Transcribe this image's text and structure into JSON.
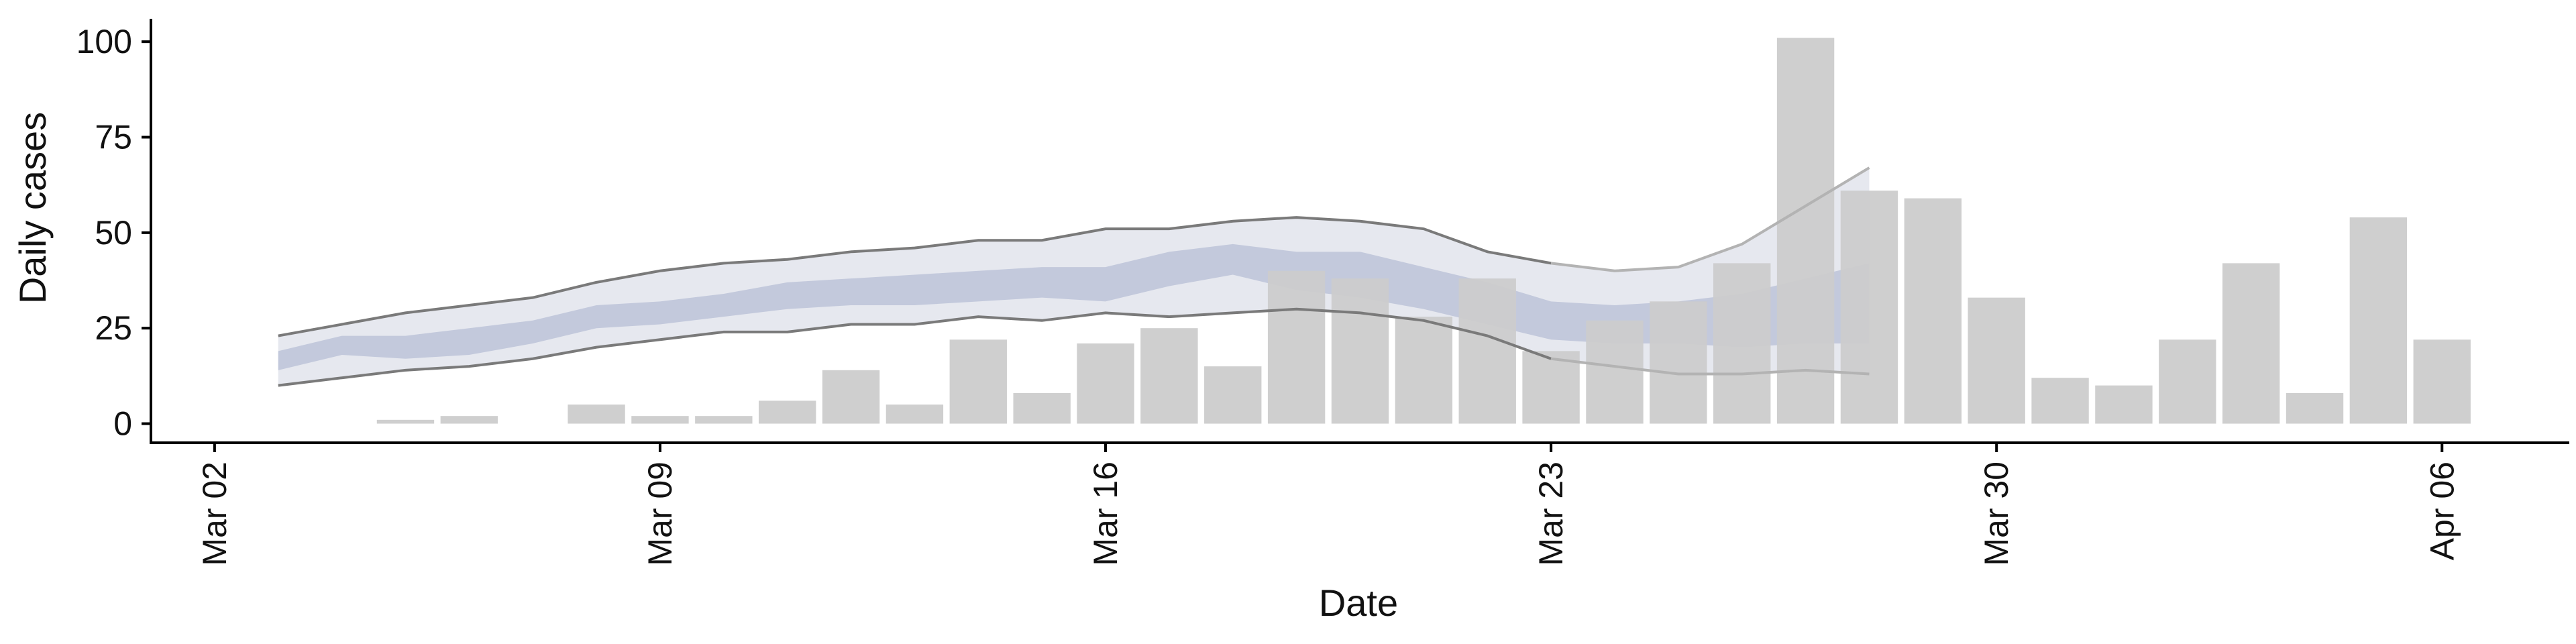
{
  "chart_data": {
    "type": "bar",
    "xlabel": "Date",
    "ylabel": "Daily cases",
    "x_start": "2020-03-02",
    "xlim": [
      "2020-03-01",
      "2020-04-08"
    ],
    "ylim": [
      -5,
      106
    ],
    "y_ticks": [
      0,
      25,
      50,
      75,
      100
    ],
    "x_ticks": [
      {
        "date": "2020-03-02",
        "label": "Mar 02"
      },
      {
        "date": "2020-03-09",
        "label": "Mar 09"
      },
      {
        "date": "2020-03-16",
        "label": "Mar 16"
      },
      {
        "date": "2020-03-23",
        "label": "Mar 23"
      },
      {
        "date": "2020-03-30",
        "label": "Mar 30"
      },
      {
        "date": "2020-04-06",
        "label": "Apr 06"
      }
    ],
    "grid": false,
    "legend": "none",
    "bars": {
      "name": "Reported cases",
      "color": "#cccccc",
      "data": [
        {
          "date": "2020-03-05",
          "value": 1
        },
        {
          "date": "2020-03-06",
          "value": 2
        },
        {
          "date": "2020-03-08",
          "value": 5
        },
        {
          "date": "2020-03-09",
          "value": 2
        },
        {
          "date": "2020-03-10",
          "value": 2
        },
        {
          "date": "2020-03-11",
          "value": 6
        },
        {
          "date": "2020-03-12",
          "value": 14
        },
        {
          "date": "2020-03-13",
          "value": 5
        },
        {
          "date": "2020-03-14",
          "value": 22
        },
        {
          "date": "2020-03-15",
          "value": 8
        },
        {
          "date": "2020-03-16",
          "value": 21
        },
        {
          "date": "2020-03-17",
          "value": 25
        },
        {
          "date": "2020-03-18",
          "value": 15
        },
        {
          "date": "2020-03-19",
          "value": 40
        },
        {
          "date": "2020-03-20",
          "value": 38
        },
        {
          "date": "2020-03-21",
          "value": 28
        },
        {
          "date": "2020-03-22",
          "value": 38
        },
        {
          "date": "2020-03-23",
          "value": 19
        },
        {
          "date": "2020-03-24",
          "value": 27
        },
        {
          "date": "2020-03-25",
          "value": 32
        },
        {
          "date": "2020-03-26",
          "value": 42
        },
        {
          "date": "2020-03-27",
          "value": 101
        },
        {
          "date": "2020-03-28",
          "value": 61
        },
        {
          "date": "2020-03-29",
          "value": 59
        },
        {
          "date": "2020-03-30",
          "value": 33
        },
        {
          "date": "2020-03-31",
          "value": 12
        },
        {
          "date": "2020-04-01",
          "value": 10
        },
        {
          "date": "2020-04-02",
          "value": 22
        },
        {
          "date": "2020-04-03",
          "value": 42
        },
        {
          "date": "2020-04-04",
          "value": 8
        },
        {
          "date": "2020-04-05",
          "value": 54
        },
        {
          "date": "2020-04-06",
          "value": 22
        }
      ]
    },
    "estimate": {
      "dates": [
        "2020-03-03",
        "2020-03-04",
        "2020-03-05",
        "2020-03-06",
        "2020-03-07",
        "2020-03-08",
        "2020-03-09",
        "2020-03-10",
        "2020-03-11",
        "2020-03-12",
        "2020-03-13",
        "2020-03-14",
        "2020-03-15",
        "2020-03-16",
        "2020-03-17",
        "2020-03-18",
        "2020-03-19",
        "2020-03-20",
        "2020-03-21",
        "2020-03-22",
        "2020-03-23",
        "2020-03-24",
        "2020-03-25",
        "2020-03-26",
        "2020-03-27",
        "2020-03-28"
      ],
      "upper90": [
        23,
        26,
        29,
        31,
        33,
        37,
        40,
        42,
        43,
        45,
        46,
        48,
        48,
        51,
        51,
        53,
        54,
        53,
        51,
        45,
        42,
        40,
        41,
        47,
        57,
        67
      ],
      "upper50": [
        19,
        23,
        23,
        25,
        27,
        31,
        32,
        34,
        37,
        38,
        39,
        40,
        41,
        41,
        45,
        47,
        45,
        45,
        41,
        37,
        32,
        31,
        32,
        34,
        38,
        42
      ],
      "lower50": [
        14,
        18,
        17,
        18,
        21,
        25,
        26,
        28,
        30,
        31,
        31,
        32,
        33,
        32,
        36,
        39,
        35,
        33,
        30,
        26,
        22,
        21,
        21,
        20,
        21,
        21
      ],
      "lower90": [
        10,
        12,
        14,
        15,
        17,
        20,
        22,
        24,
        24,
        26,
        26,
        28,
        27,
        29,
        28,
        29,
        30,
        29,
        27,
        23,
        17,
        15,
        13,
        13,
        14,
        13
      ],
      "nowcast_from": "2020-03-23",
      "colors": {
        "band90": "#e6e8ef",
        "band50": "#c3c9dc",
        "line": "#7a7a7a",
        "nowcast_line": "#b3b3b3"
      }
    }
  }
}
